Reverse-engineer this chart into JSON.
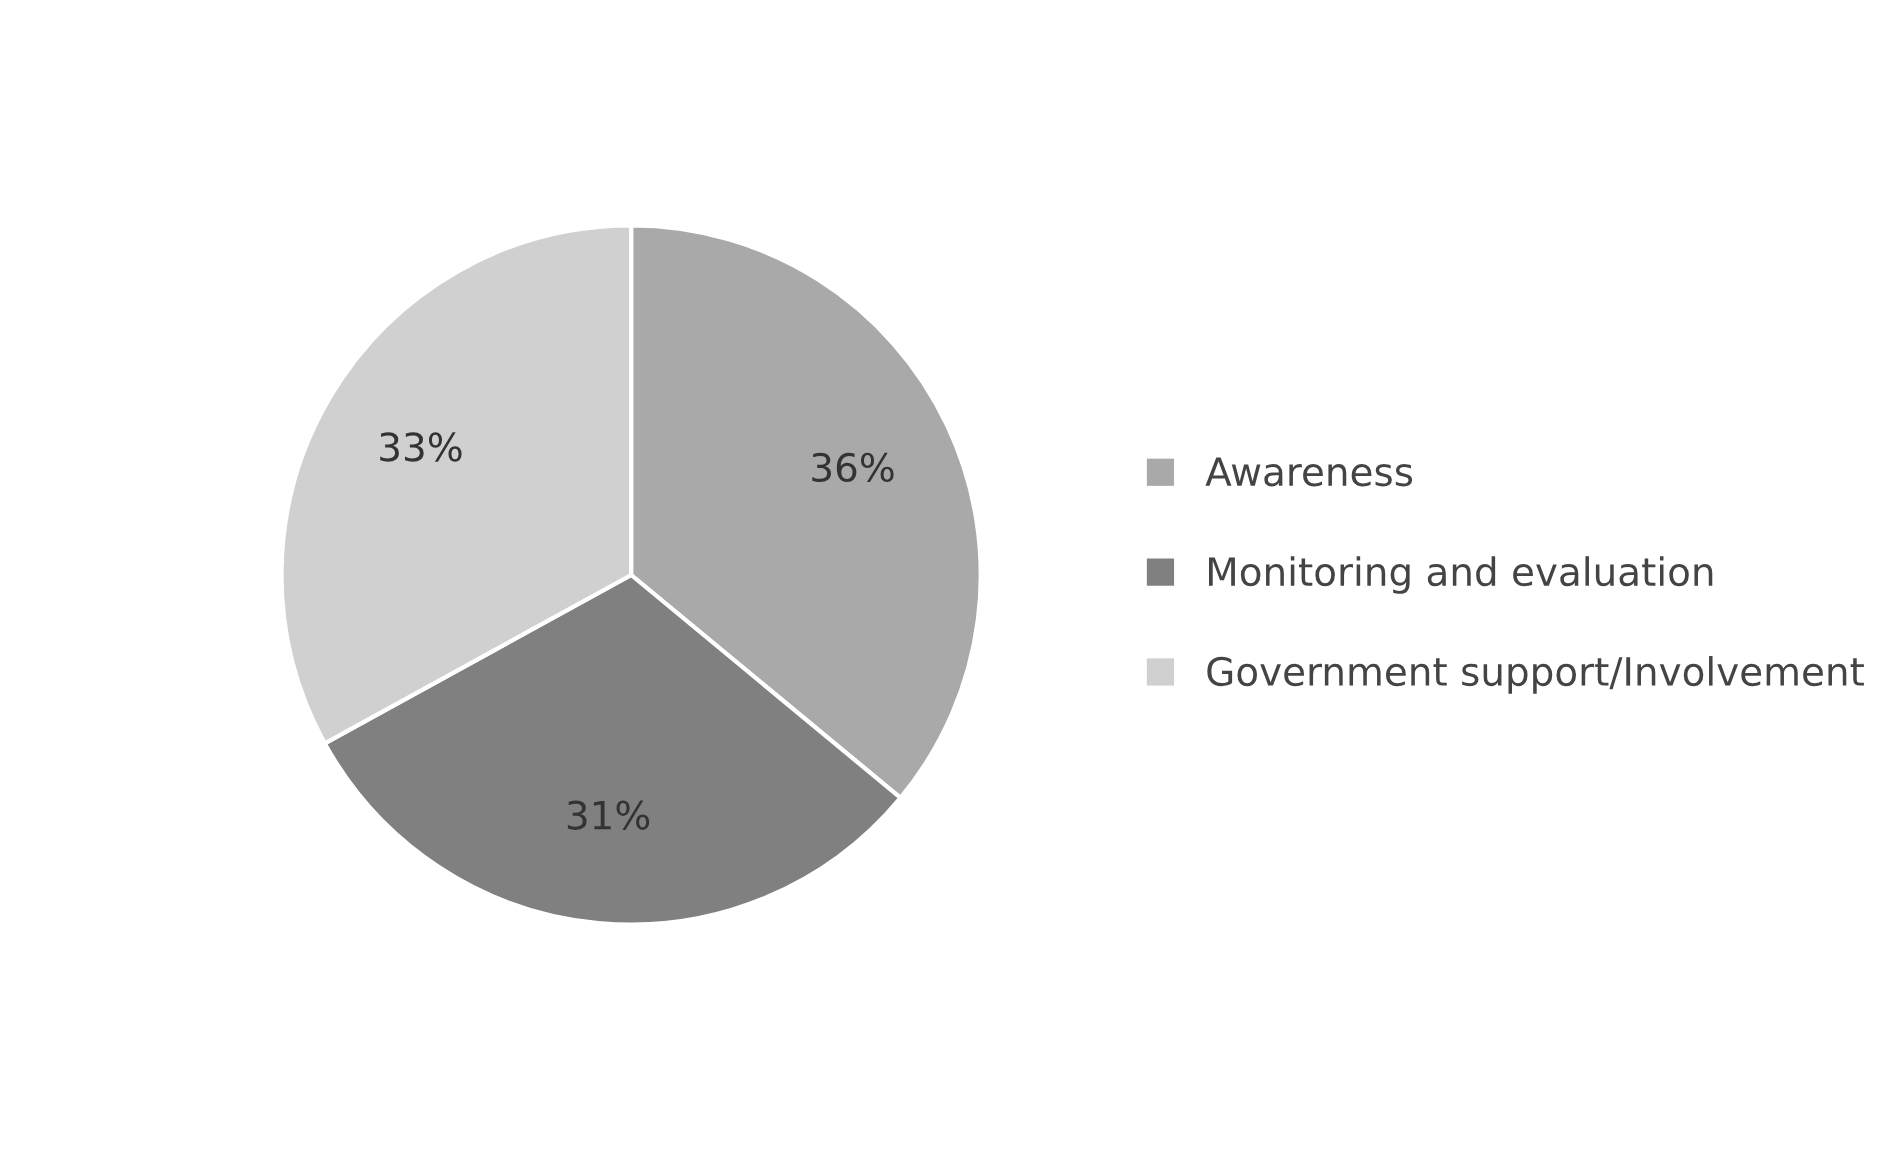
{
  "chart_data": {
    "type": "pie",
    "categories": [
      "Awareness",
      "Monitoring and evaluation",
      "Government support/Involvement"
    ],
    "values": [
      36,
      31,
      33
    ],
    "value_labels": [
      "36%",
      "31%",
      "33%"
    ],
    "colors": [
      "#a9a9a9",
      "#808080",
      "#d0d0d0"
    ],
    "legend": "right"
  }
}
